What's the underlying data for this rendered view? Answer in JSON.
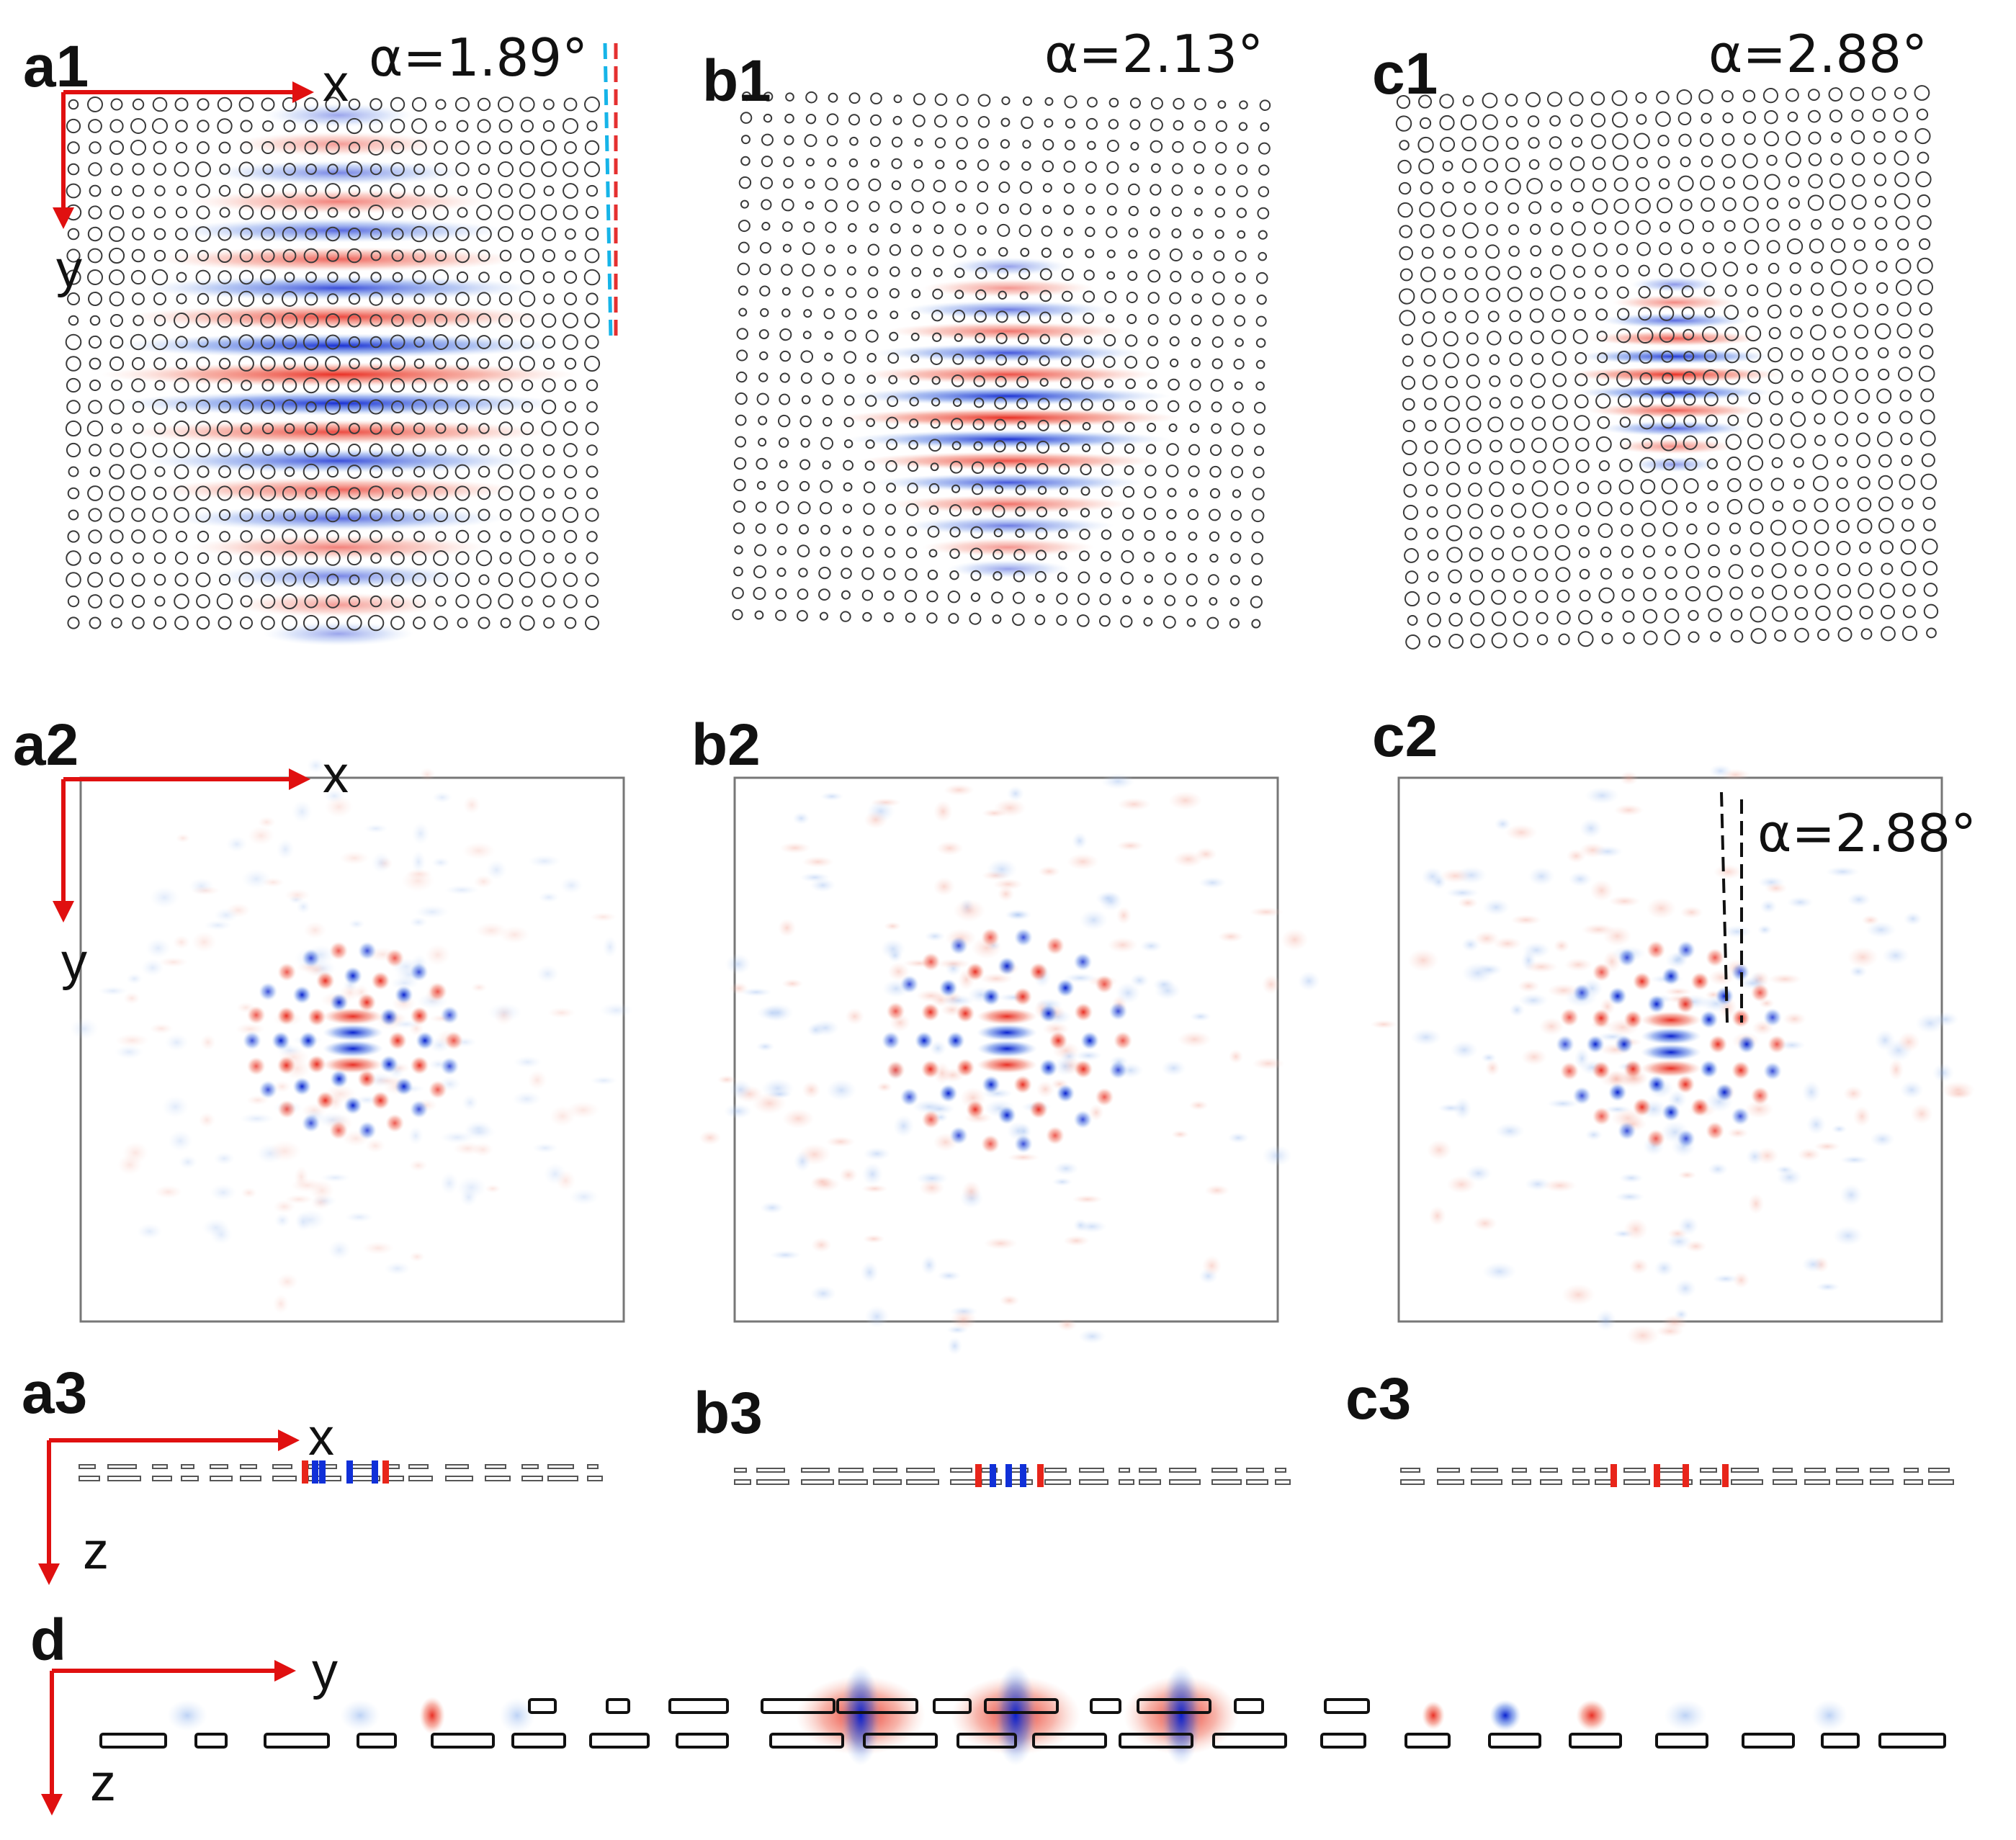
{
  "figure": {
    "panels": {
      "a1": {
        "label": "a1",
        "angle": "α=1.89°",
        "x_axis": "x",
        "y_axis": "y"
      },
      "b1": {
        "label": "b1",
        "angle": "α=2.13°"
      },
      "c1": {
        "label": "c1",
        "angle": "α=2.88°"
      },
      "a2": {
        "label": "a2",
        "x_axis": "x",
        "y_axis": "y"
      },
      "b2": {
        "label": "b2"
      },
      "c2": {
        "label": "c2",
        "angle": "α=2.88°"
      },
      "a3": {
        "label": "a3",
        "x_axis": "x",
        "z_axis": "z"
      },
      "b3": {
        "label": "b3"
      },
      "c3": {
        "label": "c3"
      },
      "d": {
        "label": "d",
        "y_axis": "y",
        "z_axis": "z"
      }
    },
    "colors": {
      "positive_field": "#e8251a",
      "negative_field": "#1030d8",
      "axis_arrow": "#e01010",
      "dashed_red": "#e53030",
      "dashed_cyan": "#16b4e8",
      "outline": "#333333"
    }
  }
}
